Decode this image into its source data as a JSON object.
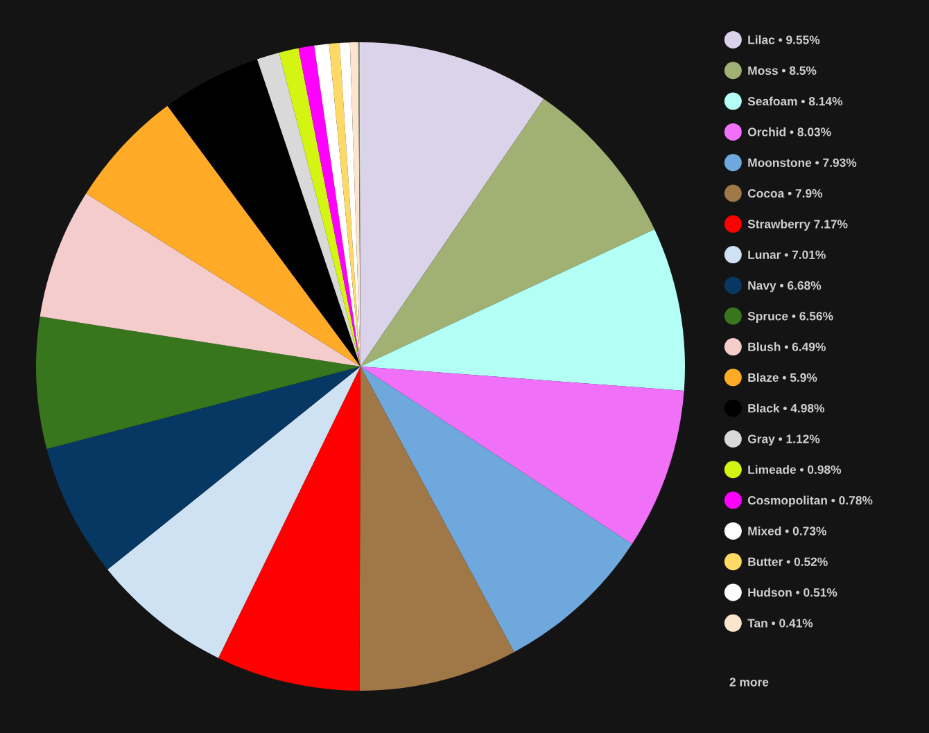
{
  "chart_data": {
    "type": "pie",
    "categories": [
      "Lilac • 9.55%",
      "Moss • 8.5%",
      "Seafoam • 8.14%",
      "Orchid • 8.03%",
      "Moonstone • 7.93%",
      "Cocoa • 7.9%",
      "Strawberry 7.17%",
      "Lunar • 7.01%",
      "Navy • 6.68%",
      "Spruce • 6.56%",
      "Blush • 6.49%",
      "Blaze • 5.9%",
      "Black • 4.98%",
      "Gray • 1.12%",
      "Limeade • 0.98%",
      "Cosmopolitan • 0.78%",
      "Mixed • 0.73%",
      "Butter • 0.52%",
      "Hudson • 0.51%",
      "Tan • 0.41%",
      null,
      null
    ],
    "values": [
      9.55,
      8.5,
      8.14,
      8.03,
      7.93,
      7.9,
      7.17,
      7.01,
      6.68,
      6.56,
      6.49,
      5.9,
      4.98,
      1.12,
      0.98,
      0.78,
      0.73,
      0.52,
      0.51,
      0.41,
      0.06,
      0.05
    ],
    "colors": [
      "#dbd3ea",
      "#a0b173",
      "#b3fff6",
      "#f070f8",
      "#6fa8dc",
      "#a07746",
      "#ff0000",
      "#cfe2f3",
      "#073763",
      "#38761d",
      "#f4cccc",
      "#ffab27",
      "#000000",
      "#d9d9d9",
      "#d4f413",
      "#ff00ff",
      "#ffffff",
      "#ffd966",
      "#fefefe",
      "#fce5cd",
      "#808080",
      "#e0e0e0"
    ],
    "legend": "right",
    "annotations": [
      "2 more"
    ]
  }
}
